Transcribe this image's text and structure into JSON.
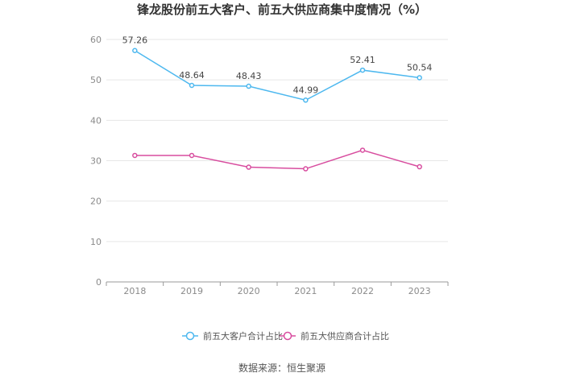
{
  "chart_data": {
    "type": "line",
    "title": "锋龙股份前五大客户、前五大供应商集中度情况（%）",
    "x": [
      "2018",
      "2019",
      "2020",
      "2021",
      "2022",
      "2023"
    ],
    "ylim": [
      0,
      60
    ],
    "yticks": [
      0,
      10,
      20,
      30,
      40,
      50,
      60
    ],
    "grid": true,
    "legend": "bottom-center",
    "series": [
      {
        "name": "前五大客户合计占比",
        "color": "#4db8ef",
        "values": [
          57.26,
          48.64,
          48.43,
          44.99,
          52.41,
          50.54
        ],
        "labels": [
          "57.26",
          "48.64",
          "48.43",
          "44.99",
          "52.41",
          "50.54"
        ]
      },
      {
        "name": "前五大供应商合计占比",
        "color": "#d84d9f",
        "values": [
          31.3,
          31.3,
          28.4,
          28.0,
          32.6,
          28.5
        ],
        "labels": null
      }
    ],
    "source": "数据来源：恒生聚源"
  }
}
